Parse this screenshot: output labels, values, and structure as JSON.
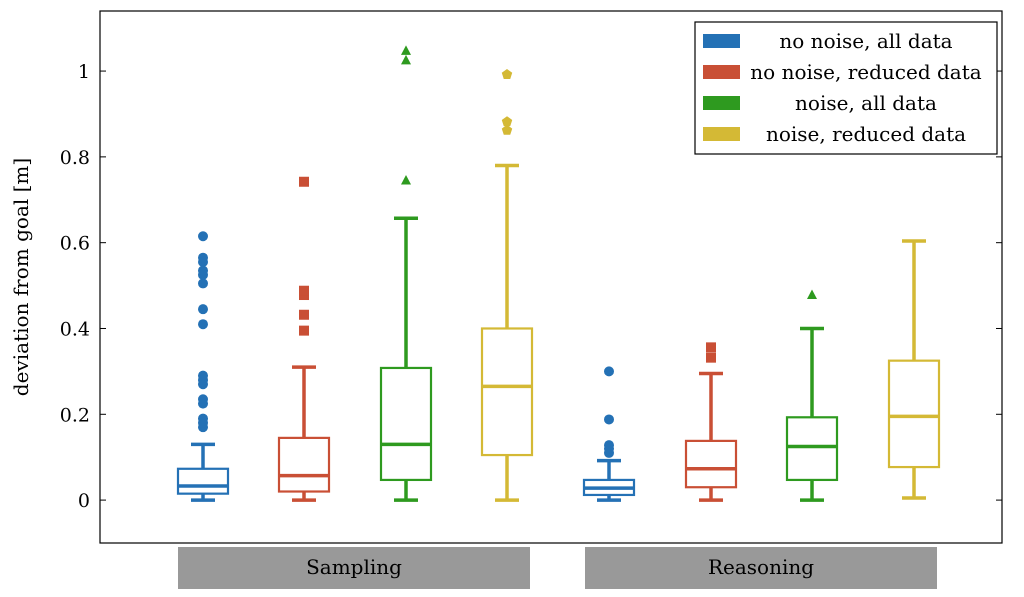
{
  "chart_data": {
    "type": "box",
    "title": "",
    "xlabel": "",
    "ylabel": "deviation from goal [m]",
    "ylim": [
      -0.1,
      1.14
    ],
    "yticks": [
      0,
      0.2,
      0.4,
      0.6,
      0.8,
      1
    ],
    "ytick_labels": [
      "0",
      "0.2",
      "0.4",
      "0.6",
      "0.8",
      "1"
    ],
    "groups": [
      "Sampling",
      "Reasoning"
    ],
    "legend": [
      {
        "label": "no noise, all data",
        "color": "#2471b5"
      },
      {
        "label": "no noise, reduced data",
        "color": "#c94f35"
      },
      {
        "label": "noise, all data",
        "color": "#2e9a1f"
      },
      {
        "label": "noise, reduced data",
        "color": "#d4b935"
      }
    ],
    "series_style": [
      {
        "marker": "circle"
      },
      {
        "marker": "square"
      },
      {
        "marker": "triangle"
      },
      {
        "marker": "pentagon"
      }
    ],
    "boxes": [
      {
        "group": "Sampling",
        "series": 0,
        "min": 0.0,
        "q1": 0.015,
        "median": 0.033,
        "q3": 0.073,
        "max": 0.13,
        "outliers": [
          0.17,
          0.18,
          0.19,
          0.225,
          0.235,
          0.27,
          0.28,
          0.29,
          0.41,
          0.445,
          0.505,
          0.525,
          0.535,
          0.555,
          0.565,
          0.615
        ]
      },
      {
        "group": "Sampling",
        "series": 1,
        "min": 0.0,
        "q1": 0.02,
        "median": 0.057,
        "q3": 0.145,
        "max": 0.31,
        "outliers": [
          0.395,
          0.432,
          0.478,
          0.488,
          0.742
        ]
      },
      {
        "group": "Sampling",
        "series": 2,
        "min": 0.0,
        "q1": 0.047,
        "median": 0.13,
        "q3": 0.308,
        "max": 0.657,
        "outliers": [
          0.745,
          1.025,
          1.047
        ]
      },
      {
        "group": "Sampling",
        "series": 3,
        "min": 0.0,
        "q1": 0.105,
        "median": 0.265,
        "q3": 0.4,
        "max": 0.78,
        "outliers": [
          0.862,
          0.882,
          0.992
        ]
      },
      {
        "group": "Reasoning",
        "series": 0,
        "min": 0.0,
        "q1": 0.012,
        "median": 0.028,
        "q3": 0.047,
        "max": 0.092,
        "outliers": [
          0.11,
          0.12,
          0.128,
          0.188,
          0.3
        ]
      },
      {
        "group": "Reasoning",
        "series": 1,
        "min": 0.0,
        "q1": 0.03,
        "median": 0.073,
        "q3": 0.138,
        "max": 0.295,
        "outliers": [
          0.332,
          0.356
        ]
      },
      {
        "group": "Reasoning",
        "series": 2,
        "min": 0.0,
        "q1": 0.047,
        "median": 0.125,
        "q3": 0.193,
        "max": 0.4,
        "outliers": [
          0.478
        ]
      },
      {
        "group": "Reasoning",
        "series": 3,
        "min": 0.005,
        "q1": 0.077,
        "median": 0.195,
        "q3": 0.325,
        "max": 0.604,
        "outliers": []
      }
    ]
  }
}
